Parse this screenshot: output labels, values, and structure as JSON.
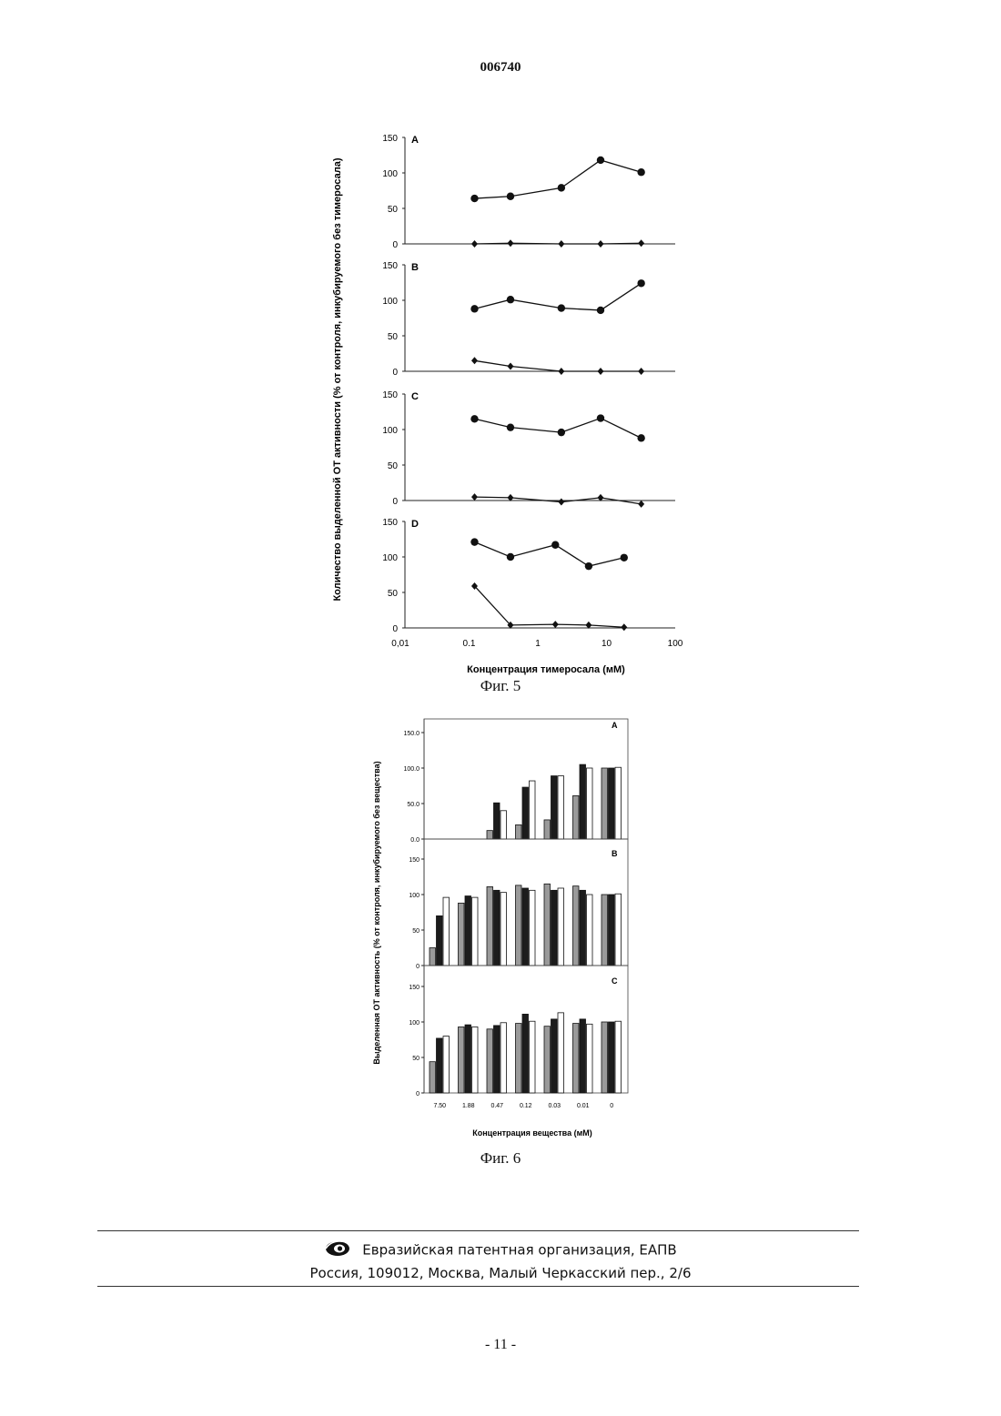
{
  "header": {
    "doc_number": "006740"
  },
  "figure5": {
    "caption": "Фиг. 5",
    "chart_data": {
      "type": "line",
      "xlabel": "Концентрация тимеросала (мМ)",
      "ylabel": "Количество выделенной ОТ активности (% от контроля, инкубируемого без тимеросала)",
      "x_scale": "log",
      "x_ticks": [
        "0,01",
        "0.1",
        "1",
        "10",
        "100"
      ],
      "y_ticks": [
        "0",
        "50",
        "100",
        "150"
      ],
      "ylim": [
        0,
        150
      ],
      "panels": [
        {
          "label": "A",
          "series": [
            {
              "marker": "circle",
              "points": [
                [
                  0.12,
                  64
                ],
                [
                  0.4,
                  67
                ],
                [
                  2.2,
                  79
                ],
                [
                  8.2,
                  118
                ],
                [
                  32,
                  101
                ]
              ]
            },
            {
              "marker": "diamond",
              "points": [
                [
                  0.12,
                  0
                ],
                [
                  0.4,
                  1
                ],
                [
                  2.2,
                  0
                ],
                [
                  8.2,
                  0
                ],
                [
                  32,
                  1
                ]
              ]
            }
          ]
        },
        {
          "label": "B",
          "series": [
            {
              "marker": "circle",
              "points": [
                [
                  0.12,
                  88
                ],
                [
                  0.4,
                  101
                ],
                [
                  2.2,
                  89
                ],
                [
                  8.2,
                  86
                ],
                [
                  32,
                  124
                ]
              ]
            },
            {
              "marker": "diamond",
              "points": [
                [
                  0.12,
                  15
                ],
                [
                  0.4,
                  7
                ],
                [
                  2.2,
                  0
                ],
                [
                  8.2,
                  0
                ],
                [
                  32,
                  0
                ]
              ]
            }
          ]
        },
        {
          "label": "C",
          "series": [
            {
              "marker": "circle",
              "points": [
                [
                  0.12,
                  115
                ],
                [
                  0.4,
                  103
                ],
                [
                  2.2,
                  96
                ],
                [
                  8.2,
                  116
                ],
                [
                  32,
                  88
                ]
              ]
            },
            {
              "marker": "diamond",
              "points": [
                [
                  0.12,
                  5
                ],
                [
                  0.4,
                  4
                ],
                [
                  2.2,
                  -2
                ],
                [
                  8.2,
                  4
                ],
                [
                  32,
                  -5
                ]
              ]
            }
          ]
        },
        {
          "label": "D",
          "series": [
            {
              "marker": "circle",
              "points": [
                [
                  0.12,
                  121
                ],
                [
                  0.4,
                  100
                ],
                [
                  1.8,
                  117
                ],
                [
                  5.5,
                  87
                ],
                [
                  18,
                  99
                ]
              ]
            },
            {
              "marker": "diamond",
              "points": [
                [
                  0.12,
                  59
                ],
                [
                  0.4,
                  4
                ],
                [
                  1.8,
                  5
                ],
                [
                  5.5,
                  4
                ],
                [
                  18,
                  1
                ]
              ]
            }
          ]
        }
      ]
    }
  },
  "figure6": {
    "caption": "Фиг. 6",
    "chart_data": {
      "type": "bar",
      "xlabel": "Концентрация вещества (мМ)",
      "ylabel": "Выделенная ОТ активность (% от контроля, инкубируемого без вещества)",
      "categories": [
        "7.50",
        "1.88",
        "0.47",
        "0.12",
        "0.03",
        "0.01",
        "0"
      ],
      "series_fills": [
        "#9a9a9a",
        "#1c1c1c",
        "#ffffff"
      ],
      "panels": [
        {
          "label": "A",
          "y_ticks": [
            "0.0",
            "50.0",
            "100.0",
            "150.0"
          ],
          "ylim": [
            0,
            150
          ],
          "series": [
            {
              "values": [
                0,
                0,
                12,
                20,
                27,
                61,
                100
              ]
            },
            {
              "values": [
                0,
                0,
                51,
                73,
                89,
                105,
                100
              ]
            },
            {
              "values": [
                0,
                0,
                40,
                82,
                89,
                100,
                101
              ]
            }
          ]
        },
        {
          "label": "B",
          "y_ticks": [
            "0",
            "50",
            "100",
            "150"
          ],
          "ylim": [
            0,
            150
          ],
          "series": [
            {
              "values": [
                25,
                88,
                111,
                113,
                115,
                112,
                100
              ]
            },
            {
              "values": [
                70,
                98,
                106,
                109,
                106,
                106,
                100
              ]
            },
            {
              "values": [
                96,
                96,
                103,
                106,
                109,
                100,
                101
              ]
            }
          ]
        },
        {
          "label": "C",
          "y_ticks": [
            "0",
            "50",
            "100",
            "150"
          ],
          "ylim": [
            0,
            150
          ],
          "series": [
            {
              "values": [
                44,
                93,
                90,
                98,
                94,
                98,
                100
              ]
            },
            {
              "values": [
                77,
                96,
                95,
                111,
                104,
                104,
                100
              ]
            },
            {
              "values": [
                80,
                93,
                99,
                101,
                113,
                97,
                101
              ]
            }
          ]
        }
      ]
    }
  },
  "footer": {
    "org": "Евразийская патентная организация, ЕАПВ",
    "address": "Россия, 109012, Москва, Малый Черкасский пер., 2/6"
  },
  "page_number": "- 11 -"
}
